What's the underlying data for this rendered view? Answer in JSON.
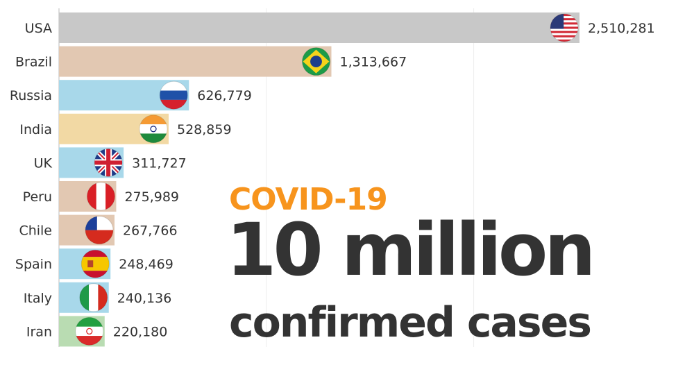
{
  "headline": {
    "subtitle": "COVID-19",
    "big": "10 million",
    "small": "confirmed cases"
  },
  "chart_data": {
    "type": "bar",
    "orientation": "horizontal",
    "categories": [
      "USA",
      "Brazil",
      "Russia",
      "India",
      "UK",
      "Peru",
      "Chile",
      "Spain",
      "Italy",
      "Iran"
    ],
    "values": [
      2510281,
      1313667,
      626779,
      528859,
      311727,
      275989,
      267766,
      248469,
      240136,
      220180
    ],
    "value_labels": [
      "2,510,281",
      "1,313,667",
      "626,779",
      "528,859",
      "311,727",
      "275,989",
      "267,766",
      "248,469",
      "240,136",
      "220,180"
    ],
    "colors": [
      "#c8c8c8",
      "#e2c8b2",
      "#a8d8ea",
      "#f2d9a4",
      "#a8d8ea",
      "#e2c8b2",
      "#e2c8b2",
      "#a8d8ea",
      "#a8d8ea",
      "#b9dcb2"
    ],
    "flag_icons": [
      "usa-flag-icon",
      "brazil-flag-icon",
      "russia-flag-icon",
      "india-flag-icon",
      "uk-flag-icon",
      "peru-flag-icon",
      "chile-flag-icon",
      "spain-flag-icon",
      "italy-flag-icon",
      "iran-flag-icon"
    ],
    "xlim": [
      0,
      2510281
    ],
    "grid": true,
    "title": "",
    "xlabel": "",
    "ylabel": ""
  }
}
